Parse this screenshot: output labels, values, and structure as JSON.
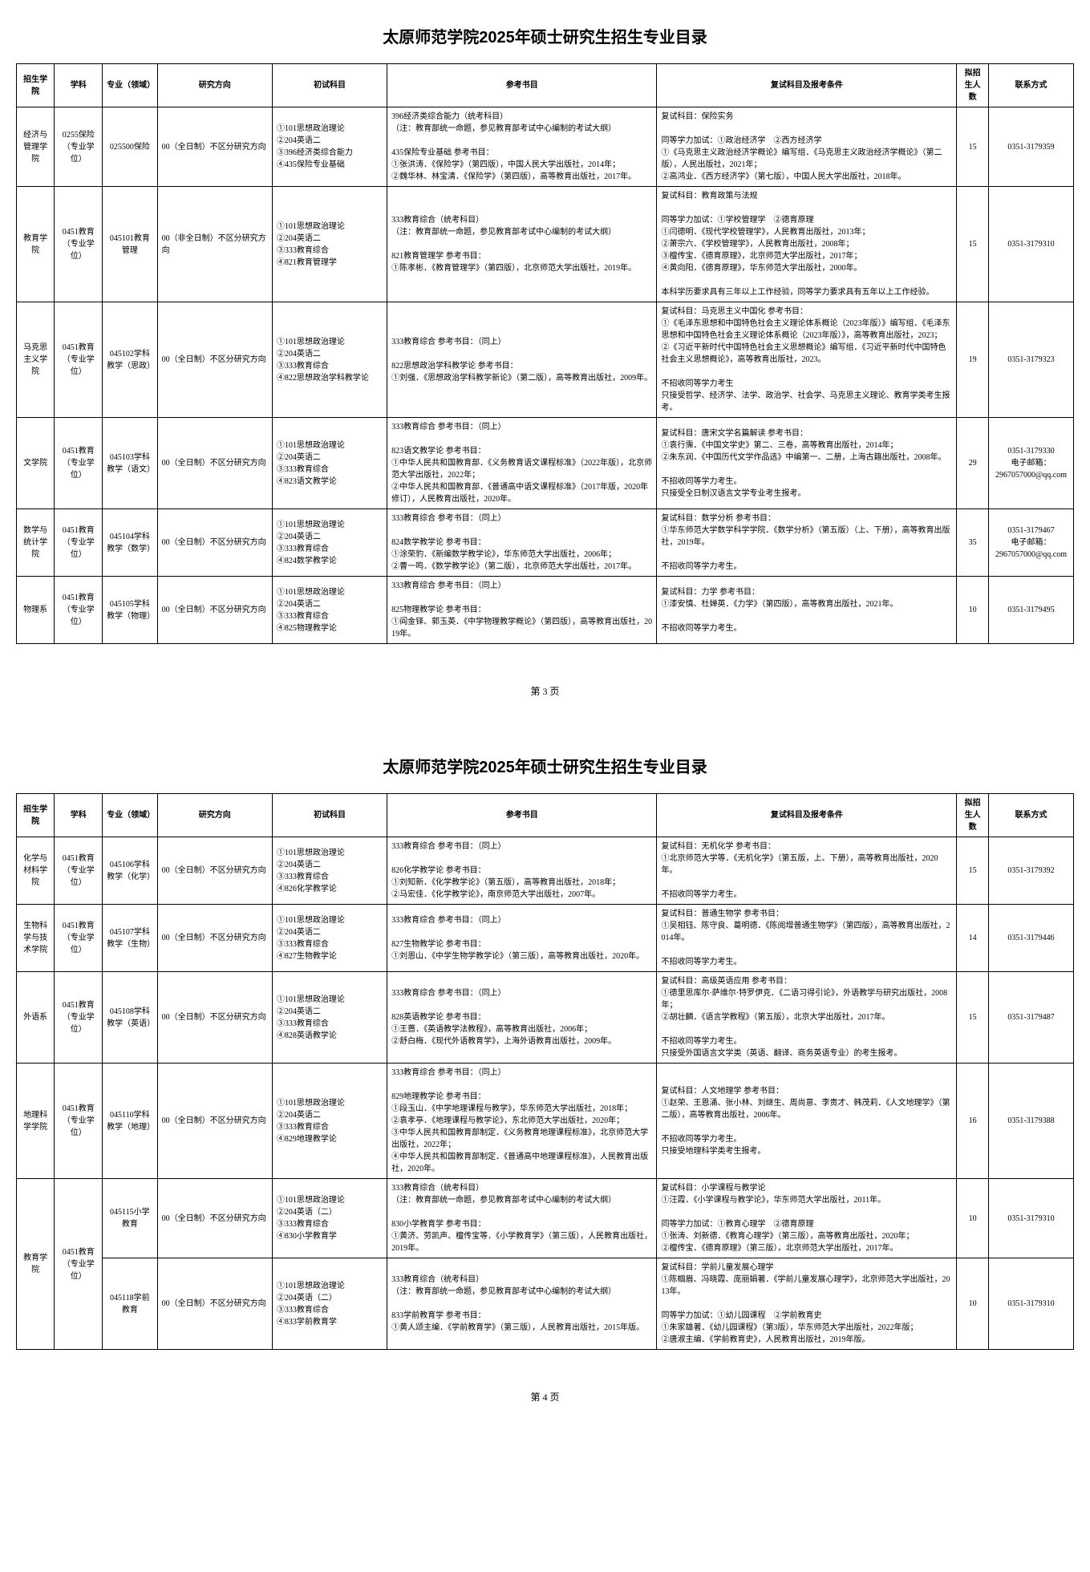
{
  "doc_title": "太原师范学院2025年硕士研究生招生专业目录",
  "page_numbers": [
    "第 3 页",
    "第 4 页"
  ],
  "headers": {
    "school": "招生学院",
    "subject": "学科",
    "major": "专业（领域）",
    "direction": "研究方向",
    "init_subjects": "初试科目",
    "ref_books": "参考书目",
    "retest": "复试科目及报考条件",
    "num": "拟招生人数",
    "contact": "联系方式"
  },
  "page1_rows": [
    {
      "school": "经济与管理学院",
      "subject": "0255保险（专业学位）",
      "major": "025500保险",
      "direction": "00（全日制）不区分研究方向",
      "init": "①101思想政治理论\n②204英语二\n③396经济类综合能力\n④435保险专业基础",
      "ref": "396经济类综合能力（统考科目）\n（注：教育部统一命题，参见教育部考试中心编制的考试大纲）\n\n435保险专业基础 参考书目：\n①张洪涛．《保险学》（第四版），中国人民大学出版社，2014年；\n②魏华林、林宝清．《保险学》（第四版），高等教育出版社，2017年。",
      "retest": "复试科目：保险实务\n\n同等学力加试：①政治经济学　②西方经济学\n①《马克思主义政治经济学概论》编写组．《马克思主义政治经济学概论》（第二版），人民出版社，2021年；\n②高鸿业．《西方经济学》（第七版），中国人民大学出版社，2018年。",
      "num": "15",
      "contact": "0351-3179359"
    },
    {
      "school": "教育学院",
      "subject": "0451教育（专业学位）",
      "major": "045101教育管理",
      "direction": "00（非全日制）不区分研究方向",
      "init": "①101思想政治理论\n②204英语二\n③333教育综合\n④821教育管理学",
      "ref": "333教育综合（统考科目）\n（注：教育部统一命题，参见教育部考试中心编制的考试大纲）\n\n821教育管理学 参考书目：\n①陈孝彬．《教育管理学》（第四版），北京师范大学出版社，2019年。",
      "retest": "复试科目：教育政策与法规\n\n同等学力加试：①学校管理学　②德育原理\n①闫德明．《现代学校管理学》，人民教育出版社，2013年；\n②萧宗六．《学校管理学》，人民教育出版社，2008年；\n③檀传宝．《德育原理》，北京师范大学出版社，2017年；\n④黄向阳．《德育原理》，华东师范大学出版社，2000年。\n\n本科学历要求具有三年以上工作经验，同等学力要求具有五年以上工作经验。",
      "num": "15",
      "contact": "0351-3179310"
    },
    {
      "school": "马克思主义学院",
      "subject": "0451教育（专业学位）",
      "major": "045102学科教学（思政）",
      "direction": "00（全日制）不区分研究方向",
      "init": "①101思想政治理论\n②204英语二\n③333教育综合\n④822思想政治学科教学论",
      "ref": "333教育综合 参考书目：（同上）\n\n822思想政治学科教学论 参考书目：\n①刘强．《思想政治学科教学新论》（第二版），高等教育出版社，2009年。",
      "retest": "复试科目：马克思主义中国化 参考书目：\n①《毛泽东思想和中国特色社会主义理论体系概论（2023年版）》编写组．《毛泽东思想和中国特色社会主义理论体系概论（2023年版）》，高等教育出版社，2023；\n②《习近平新时代中国特色社会主义思想概论》编写组．《习近平新时代中国特色社会主义思想概论》，高等教育出版社，2023。\n\n不招收同等学力考生\n只接受哲学、经济学、法学、政治学、社会学、马克思主义理论、教育学类考生报考。",
      "num": "19",
      "contact": "0351-3179323"
    },
    {
      "school": "文学院",
      "subject": "0451教育（专业学位）",
      "major": "045103学科教学（语文）",
      "direction": "00（全日制）不区分研究方向",
      "init": "①101思想政治理论\n②204英语二\n③333教育综合\n④823语文教学论",
      "ref": "333教育综合 参考书目：（同上）\n\n823语文教学论 参考书目：\n①中华人民共和国教育部．《义务教育语文课程标准》（2022年版），北京师范大学出版社，2022年；\n②中华人民共和国教育部．《普通高中语文课程标准》（2017年版，2020年修订），人民教育出版社，2020年。",
      "retest": "复试科目：唐宋文学名篇解读 参考书目：\n①袁行霈．《中国文学史》第二、三卷，高等教育出版社，2014年；\n②朱东润．《中国历代文学作品选》中编第一、二册，上海古籍出版社，2008年。\n\n不招收同等学力考生。\n只接受全日制汉语言文学专业考生报考。",
      "num": "29",
      "contact": "0351-3179330\n电子邮箱：\n2967057000@qq.com"
    },
    {
      "school": "数学与统计学院",
      "subject": "0451教育（专业学位）",
      "major": "045104学科教学（数学）",
      "direction": "00（全日制）不区分研究方向",
      "init": "①101思想政治理论\n②204英语二\n③333教育综合\n④824数学教学论",
      "ref": "333教育综合 参考书目：（同上）\n\n824数学教学论 参考书目：\n①涂荣豹．《新编数学教学论》，华东师范大学出版社，2006年；\n②曹一鸣．《数学教学论》（第二版），北京师范大学出版社，2017年。",
      "retest": "复试科目：数学分析 参考书目：\n①华东师范大学数学科学学院．《数学分析》（第五版）（上、下册），高等教育出版社，2019年。\n\n不招收同等学力考生。",
      "num": "35",
      "contact": "0351-3179467\n电子邮箱：\n2967057000@qq.com"
    },
    {
      "school": "物理系",
      "subject": "0451教育（专业学位）",
      "major": "045105学科教学（物理）",
      "direction": "00（全日制）不区分研究方向",
      "init": "①101思想政治理论\n②204英语二\n③333教育综合\n④825物理教学论",
      "ref": "333教育综合 参考书目：（同上）\n\n825物理教学论 参考书目：\n①阎金铎、郭玉英．《中学物理教学概论》（第四版），高等教育出版社，2019年。",
      "retest": "复试科目：力学 参考书目：\n①漆安慎、杜婵英．《力学》（第四版），高等教育出版社，2021年。\n\n不招收同等学力考生。",
      "num": "10",
      "contact": "0351-3179495"
    }
  ],
  "page2_rows": [
    {
      "school": "化学与材料学院",
      "subject": "0451教育（专业学位）",
      "major": "045106学科教学（化学）",
      "direction": "00（全日制）不区分研究方向",
      "init": "①101思想政治理论\n②204英语二\n③333教育综合\n④826化学教学论",
      "ref": "333教育综合 参考书目：（同上）\n\n826化学教学论 参考书目：\n①刘知新．《化学教学论》（第五版），高等教育出版社，2018年；\n②马宏佳．《化学教学论》，南京师范大学出版社，2007年。",
      "retest": "复试科目：无机化学 参考书目：\n①北京师范大学等．《无机化学》（第五版，上、下册），高等教育出版社，2020年。\n\n不招收同等学力考生。",
      "num": "15",
      "contact": "0351-3179392"
    },
    {
      "school": "生物科学与技术学院",
      "subject": "0451教育（专业学位）",
      "major": "045107学科教学（生物）",
      "direction": "00（全日制）不区分研究方向",
      "init": "①101思想政治理论\n②204英语二\n③333教育综合\n④827生物教学论",
      "ref": "333教育综合 参考书目：（同上）\n\n827生物教学论 参考书目：\n①刘恩山．《中学生物学教学论》（第三版），高等教育出版社，2020年。",
      "retest": "复试科目：普通生物学 参考书目：\n①吴相钰、陈守良、葛明德．《陈阅增普通生物学》（第四版），高等教育出版社，2014年。\n\n不招收同等学力考生。",
      "num": "14",
      "contact": "0351-3179446"
    },
    {
      "school": "外语系",
      "subject": "0451教育（专业学位）",
      "major": "045108学科教学（英语）",
      "direction": "00（全日制）不区分研究方向",
      "init": "①101思想政治理论\n②204英语二\n③333教育综合\n④828英语教学论",
      "ref": "333教育综合 参考书目：（同上）\n\n828英语教学论 参考书目：\n①王蔷．《英语教学法教程》，高等教育出版社，2006年；\n②舒白梅．《现代外语教育学》，上海外语教育出版社，2009年。",
      "retest": "复试科目：高级英语应用 参考书目：\n①德里思库尔·萨维尔·特罗伊克．《二语习得引论》，外语教学与研究出版社，2008年；\n②胡壮麟．《语言学教程》（第五版），北京大学出版社，2017年。\n\n不招收同等学力考生。\n只接受外国语言文学类（英语、翻译、商务英语专业）的考生报考。",
      "num": "15",
      "contact": "0351-3179487"
    },
    {
      "school": "地理科学学院",
      "subject": "0451教育（专业学位）",
      "major": "045110学科教学（地理）",
      "direction": "00（全日制）不区分研究方向",
      "init": "①101思想政治理论\n②204英语二\n③333教育综合\n④829地理教学论",
      "ref": "333教育综合 参考书目：（同上）\n\n829地理教学论 参考书目：\n①段玉山．《中学地理课程与教学》，华东师范大学出版社，2018年；\n②袁孝亭．《地理课程与教学论》，东北师范大学出版社，2020年；\n③中华人民共和国教育部制定．《义务教育地理课程标准》，北京师范大学出版社，2022年；\n④中华人民共和国教育部制定．《普通高中地理课程标准》，人民教育出版社，2020年。",
      "retest": "复试科目：人文地理学 参考书目：\n①赵荣、王恩涌、张小林、刘继生、周尚意、李贵才、韩茂莉．《人文地理学》（第二版），高等教育出版社，2006年。\n\n不招收同等学力考生。\n只接受地理科学类考生报考。",
      "num": "16",
      "contact": "0351-3179388"
    },
    {
      "school": "教育学院",
      "school_rowspan": 2,
      "subject": "0451教育（专业学位）",
      "subject_rowspan": 2,
      "major": "045115小学教育",
      "direction": "00（全日制）不区分研究方向",
      "init": "①101思想政治理论\n②204英语（二）\n③333教育综合\n④830小学教育学",
      "ref": "333教育综合（统考科目）\n（注：教育部统一命题，参见教育部考试中心编制的考试大纲）\n\n830小学教育学 参考书目：\n①黄济、劳凯声、檀传宝等．《小学教育学》（第三版），人民教育出版社，2019年。",
      "retest": "复试科目：小学课程与教学论\n①汪霞．《小学课程与教学论》，华东师范大学出版社，2011年。\n\n同等学力加试：①教育心理学　②德育原理\n①张涛、刘新德．《教育心理学》（第三版），高等教育出版社，2020年；\n②檀传宝．《德育原理》（第三版），北京师范大学出版社，2017年。",
      "num": "10",
      "contact": "0351-3179310"
    },
    {
      "major": "045118学前教育",
      "direction": "00（全日制）不区分研究方向",
      "init": "①101思想政治理论\n②204英语（二）\n③333教育综合\n④833学前教育学",
      "ref": "333教育综合（统考科目）\n（注：教育部统一命题，参见教育部考试中心编制的考试大纲）\n\n833学前教育学 参考书目：\n①黄人颂主编．《学前教育学》（第三版），人民教育出版社，2015年版。",
      "retest": "复试科目：学前儿童发展心理学\n①陈帼眉、冯晓霞、庞丽娟著．《学前儿童发展心理学》，北京师范大学出版社，2013年。\n\n同等学力加试：①幼儿园课程　②学前教育史\n①朱家雄著．《幼儿园课程》（第3版），华东师范大学出版社，2022年版；\n②唐淑主编．《学前教育史》，人民教育出版社，2019年版。",
      "num": "10",
      "contact": "0351-3179310"
    }
  ]
}
